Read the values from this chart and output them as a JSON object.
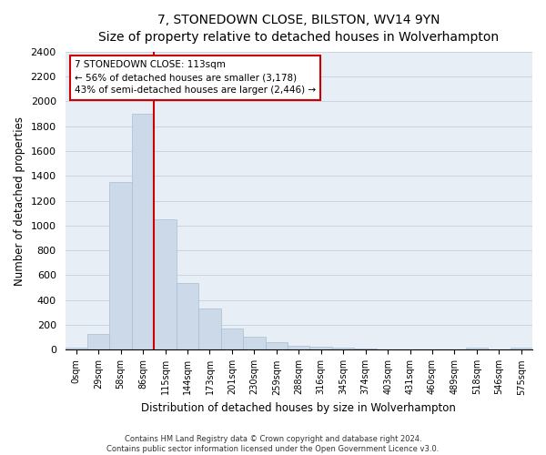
{
  "title": "7, STONEDOWN CLOSE, BILSTON, WV14 9YN",
  "subtitle": "Size of property relative to detached houses in Wolverhampton",
  "xlabel": "Distribution of detached houses by size in Wolverhampton",
  "ylabel": "Number of detached properties",
  "footnote1": "Contains HM Land Registry data © Crown copyright and database right 2024.",
  "footnote2": "Contains public sector information licensed under the Open Government Licence v3.0.",
  "bar_labels": [
    "0sqm",
    "29sqm",
    "58sqm",
    "86sqm",
    "115sqm",
    "144sqm",
    "173sqm",
    "201sqm",
    "230sqm",
    "259sqm",
    "288sqm",
    "316sqm",
    "345sqm",
    "374sqm",
    "403sqm",
    "431sqm",
    "460sqm",
    "489sqm",
    "518sqm",
    "546sqm",
    "575sqm"
  ],
  "bar_values": [
    15,
    125,
    1350,
    1900,
    1050,
    540,
    335,
    170,
    105,
    60,
    35,
    25,
    15,
    10,
    5,
    5,
    3,
    2,
    15,
    3,
    15
  ],
  "bar_color": "#ccd9e8",
  "bar_edge_color": "#aabdd4",
  "grid_color": "#c8d4e4",
  "background_color": "#e8eef6",
  "red_line_index": 4,
  "red_line_color": "#cc0000",
  "annotation_line1": "7 STONEDOWN CLOSE: 113sqm",
  "annotation_line2": "← 56% of detached houses are smaller (3,178)",
  "annotation_line3": "43% of semi-detached houses are larger (2,446) →",
  "annotation_box_color": "#cc0000",
  "ylim": [
    0,
    2400
  ],
  "yticks": [
    0,
    200,
    400,
    600,
    800,
    1000,
    1200,
    1400,
    1600,
    1800,
    2000,
    2200,
    2400
  ]
}
